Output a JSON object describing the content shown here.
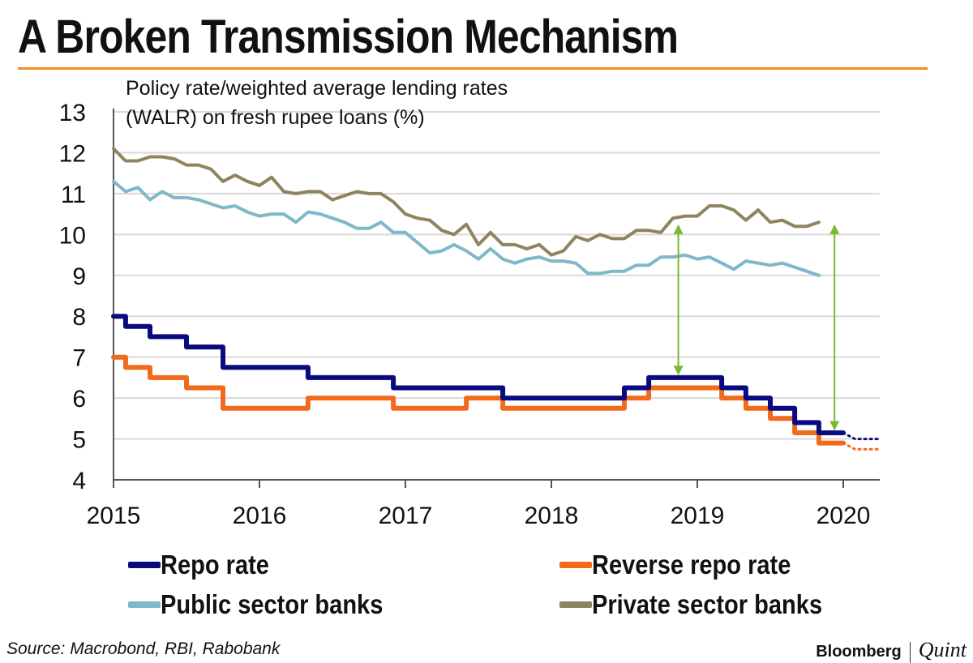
{
  "title": "A Broken Transmission Mechanism",
  "source": "Source: Macrobond, RBI, Rabobank",
  "brand": {
    "primary": "Bloomberg",
    "secondary": "Quint"
  },
  "colors": {
    "accent_rule": "#f28c28",
    "repo": "#0a0a80",
    "reverse_repo": "#f26b1d",
    "public": "#7fb8c8",
    "private": "#8f8460",
    "arrow": "#7cb82f",
    "grid": "#d9d9d9"
  },
  "chart_data": {
    "type": "line",
    "subtitle_lines": [
      "Policy rate/weighted average lending rates",
      "(WALR) on fresh rupee loans (%)"
    ],
    "ylim": [
      4,
      13
    ],
    "yticks": [
      "4",
      "5",
      "6",
      "7",
      "8",
      "9",
      "10",
      "11",
      "12",
      "13"
    ],
    "xlim": [
      2015,
      2020.25
    ],
    "xticks": [
      "2015",
      "2016",
      "2017",
      "2018",
      "2019",
      "2020"
    ],
    "grid": true,
    "series": [
      {
        "name": "Repo rate",
        "key": "repo",
        "width": 6,
        "step": true,
        "x": [
          2015.0,
          2015.083,
          2015.167,
          2015.25,
          2015.333,
          2015.417,
          2015.5,
          2015.583,
          2015.667,
          2015.75,
          2015.833,
          2016.25,
          2016.333,
          2016.833,
          2016.917,
          2017.583,
          2017.667,
          2018.417,
          2018.5,
          2018.583,
          2018.667,
          2019.083,
          2019.167,
          2019.25,
          2019.333,
          2019.417,
          2019.5,
          2019.583,
          2019.667,
          2019.75,
          2019.833,
          2020.0
        ],
        "y": [
          8.0,
          7.75,
          7.75,
          7.5,
          7.5,
          7.5,
          7.25,
          7.25,
          7.25,
          6.75,
          6.75,
          6.75,
          6.5,
          6.5,
          6.25,
          6.25,
          6.0,
          6.0,
          6.25,
          6.25,
          6.5,
          6.5,
          6.25,
          6.25,
          6.0,
          6.0,
          5.75,
          5.75,
          5.4,
          5.4,
          5.15,
          5.15
        ],
        "forecast_x": [
          2020.0,
          2020.08,
          2020.25
        ],
        "forecast_y": [
          5.15,
          5.0,
          5.0
        ]
      },
      {
        "name": "Reverse repo rate",
        "key": "reverse_repo",
        "width": 6,
        "step": true,
        "x": [
          2015.0,
          2015.083,
          2015.167,
          2015.25,
          2015.333,
          2015.417,
          2015.5,
          2015.583,
          2015.667,
          2015.75,
          2015.833,
          2016.25,
          2016.333,
          2016.833,
          2016.917,
          2017.333,
          2017.417,
          2017.583,
          2017.667,
          2018.417,
          2018.5,
          2018.583,
          2018.667,
          2019.083,
          2019.167,
          2019.25,
          2019.333,
          2019.417,
          2019.5,
          2019.583,
          2019.667,
          2019.75,
          2019.833,
          2020.0
        ],
        "y": [
          7.0,
          6.75,
          6.75,
          6.5,
          6.5,
          6.5,
          6.25,
          6.25,
          6.25,
          5.75,
          5.75,
          5.75,
          6.0,
          6.0,
          5.75,
          5.75,
          6.0,
          6.0,
          5.75,
          5.75,
          6.0,
          6.0,
          6.25,
          6.25,
          6.0,
          6.0,
          5.75,
          5.75,
          5.5,
          5.5,
          5.15,
          5.15,
          4.9,
          4.9
        ],
        "forecast_x": [
          2020.0,
          2020.08,
          2020.25
        ],
        "forecast_y": [
          4.9,
          4.75,
          4.75
        ]
      },
      {
        "name": "Public sector banks",
        "key": "public",
        "width": 4,
        "step": false,
        "x": [
          2015.0,
          2015.083,
          2015.167,
          2015.25,
          2015.333,
          2015.417,
          2015.5,
          2015.583,
          2015.667,
          2015.75,
          2015.833,
          2015.917,
          2016.0,
          2016.083,
          2016.167,
          2016.25,
          2016.333,
          2016.417,
          2016.5,
          2016.583,
          2016.667,
          2016.75,
          2016.833,
          2016.917,
          2017.0,
          2017.083,
          2017.167,
          2017.25,
          2017.333,
          2017.417,
          2017.5,
          2017.583,
          2017.667,
          2017.75,
          2017.833,
          2017.917,
          2018.0,
          2018.083,
          2018.167,
          2018.25,
          2018.333,
          2018.417,
          2018.5,
          2018.583,
          2018.667,
          2018.75,
          2018.833,
          2018.917,
          2019.0,
          2019.083,
          2019.167,
          2019.25,
          2019.333,
          2019.417,
          2019.5,
          2019.583,
          2019.667,
          2019.75,
          2019.833
        ],
        "y": [
          11.3,
          11.05,
          11.15,
          10.85,
          11.05,
          10.9,
          10.9,
          10.85,
          10.75,
          10.65,
          10.7,
          10.55,
          10.45,
          10.5,
          10.5,
          10.3,
          10.55,
          10.5,
          10.4,
          10.3,
          10.15,
          10.15,
          10.3,
          10.05,
          10.05,
          9.8,
          9.55,
          9.6,
          9.75,
          9.6,
          9.4,
          9.65,
          9.4,
          9.3,
          9.4,
          9.45,
          9.35,
          9.35,
          9.3,
          9.05,
          9.05,
          9.1,
          9.1,
          9.25,
          9.25,
          9.45,
          9.45,
          9.5,
          9.4,
          9.45,
          9.3,
          9.15,
          9.35,
          9.3,
          9.25,
          9.3,
          9.2,
          9.1,
          9.0
        ]
      },
      {
        "name": "Private sector banks",
        "key": "private",
        "width": 4,
        "step": false,
        "x": [
          2015.0,
          2015.083,
          2015.167,
          2015.25,
          2015.333,
          2015.417,
          2015.5,
          2015.583,
          2015.667,
          2015.75,
          2015.833,
          2015.917,
          2016.0,
          2016.083,
          2016.167,
          2016.25,
          2016.333,
          2016.417,
          2016.5,
          2016.583,
          2016.667,
          2016.75,
          2016.833,
          2016.917,
          2017.0,
          2017.083,
          2017.167,
          2017.25,
          2017.333,
          2017.417,
          2017.5,
          2017.583,
          2017.667,
          2017.75,
          2017.833,
          2017.917,
          2018.0,
          2018.083,
          2018.167,
          2018.25,
          2018.333,
          2018.417,
          2018.5,
          2018.583,
          2018.667,
          2018.75,
          2018.833,
          2018.917,
          2019.0,
          2019.083,
          2019.167,
          2019.25,
          2019.333,
          2019.417,
          2019.5,
          2019.583,
          2019.667,
          2019.75,
          2019.833
        ],
        "y": [
          12.1,
          11.8,
          11.8,
          11.9,
          11.9,
          11.85,
          11.7,
          11.7,
          11.6,
          11.3,
          11.45,
          11.3,
          11.2,
          11.4,
          11.05,
          11.0,
          11.05,
          11.05,
          10.85,
          10.95,
          11.05,
          11.0,
          11.0,
          10.8,
          10.5,
          10.4,
          10.35,
          10.1,
          10.0,
          10.25,
          9.75,
          10.05,
          9.75,
          9.75,
          9.65,
          9.75,
          9.5,
          9.6,
          9.95,
          9.85,
          10.0,
          9.9,
          9.9,
          10.1,
          10.1,
          10.05,
          10.4,
          10.45,
          10.45,
          10.7,
          10.7,
          10.6,
          10.35,
          10.6,
          10.3,
          10.35,
          10.2,
          10.2,
          10.3
        ]
      }
    ],
    "annotations": [
      {
        "type": "double-arrow",
        "x": 2018.87,
        "y_from": 10.2,
        "y_to": 6.6
      },
      {
        "type": "double-arrow",
        "x": 2019.94,
        "y_from": 10.2,
        "y_to": 5.25
      }
    ]
  },
  "legend": {
    "repo": "Repo rate",
    "reverse_repo": "Reverse repo rate",
    "public": "Public sector banks",
    "private": "Private sector banks"
  }
}
